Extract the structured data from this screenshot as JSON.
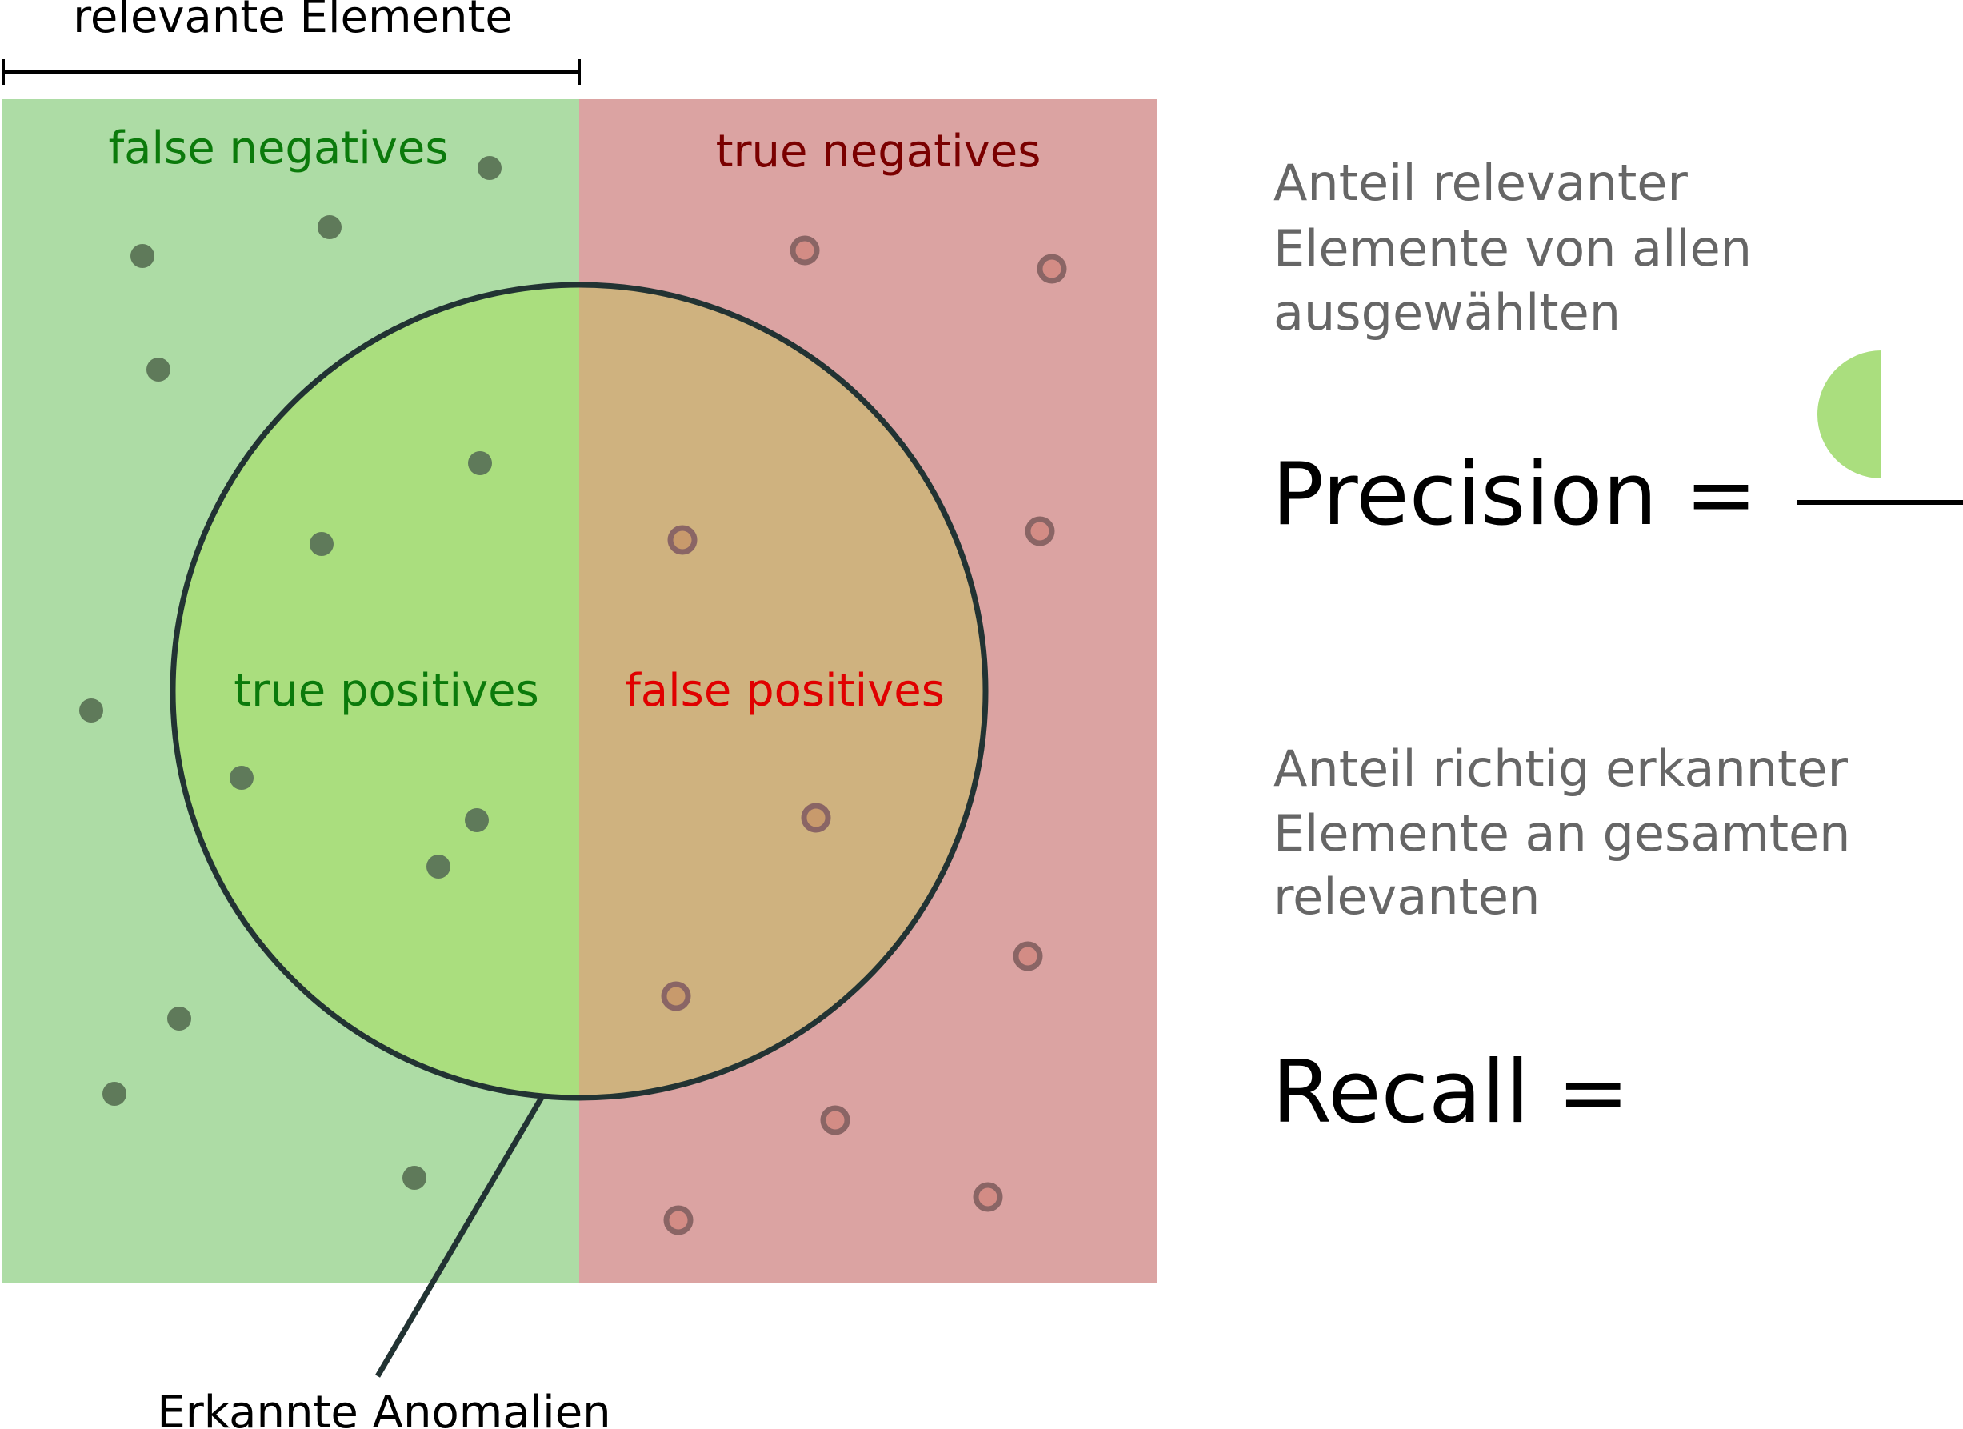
{
  "labels": {
    "relevant_elements": "relevante Elemente",
    "false_negatives": "false negatives",
    "true_negatives": "true negatives",
    "true_positives": "true positives",
    "false_positives": "false positives",
    "detected_anomalies": "Erkannte Anomalien"
  },
  "precision": {
    "description_lines": [
      "Anteil relevanter",
      "Elemente von allen",
      "ausgewählten"
    ],
    "formula": "Precision ="
  },
  "recall": {
    "description_lines": [
      "Anteil richtig erkannter",
      "Elemente an gesamten",
      "relevanten"
    ],
    "formula": "Recall ="
  },
  "colors": {
    "relevant_area": "#addc a5",
    "relevant_area_fixed": "#addca5",
    "irrelevant_area": "#dba3a2",
    "true_positive_fill": "#aade7e",
    "false_positive_fill": "#cfb27f",
    "circle_stroke": "#223333",
    "dot_relevant": "#5f7a5a",
    "dot_irrelevant_ring": "#8a6565",
    "dot_irrelevant_center": "#d38c85",
    "text_false_negatives": "#0b7a0b",
    "text_true_negatives": "#7a0000",
    "text_true_positives": "#0b7a0b",
    "text_false_positives": "#e00000",
    "text_description": "#666666"
  }
}
